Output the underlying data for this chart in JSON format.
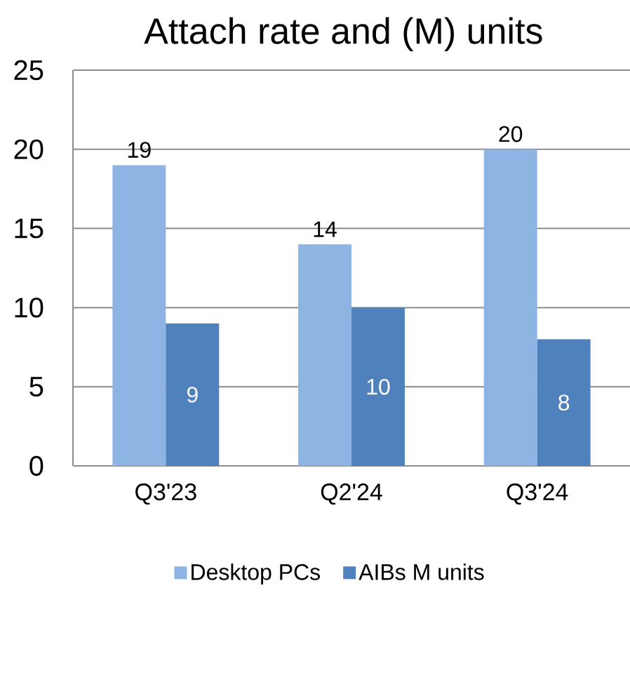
{
  "chart_data": {
    "type": "bar",
    "title": "Attach rate and (M) units",
    "categories": [
      "Q3'23",
      "Q2'24",
      "Q3'24"
    ],
    "series": [
      {
        "name": "Desktop PCs",
        "color": "#8eb4e3",
        "values": [
          19,
          14,
          20
        ]
      },
      {
        "name": "AIBs M units",
        "color": "#4f81bd",
        "values": [
          9,
          10,
          8
        ]
      }
    ],
    "ylim": [
      0,
      25
    ],
    "yticks": [
      0,
      5,
      10,
      15,
      20,
      25
    ],
    "grid": "y",
    "legend": "bottom",
    "data_labels": true
  }
}
